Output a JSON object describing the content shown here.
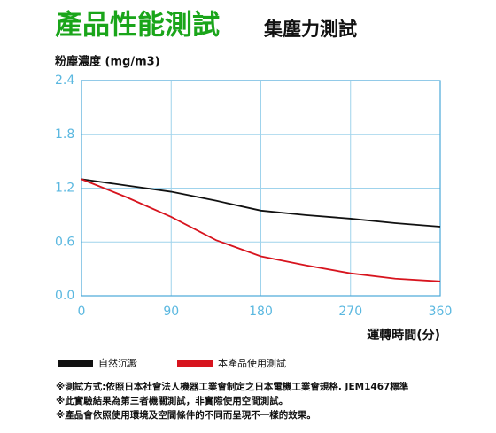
{
  "chart_data": {
    "type": "line",
    "title": "產品性能測試",
    "subtitle": "集塵力測試",
    "y_label": "粉塵濃度 (mg/m3)",
    "x_label": "運轉時間(分)",
    "x": [
      0,
      45,
      90,
      135,
      180,
      225,
      270,
      315,
      360
    ],
    "series": [
      {
        "name": "自然沉澱",
        "color": "#111111",
        "values": [
          1.3,
          1.23,
          1.16,
          1.06,
          0.95,
          0.9,
          0.86,
          0.81,
          0.77
        ]
      },
      {
        "name": "本產品使用測試",
        "color": "#d7141e",
        "values": [
          1.3,
          1.1,
          0.88,
          0.62,
          0.44,
          0.34,
          0.25,
          0.19,
          0.16
        ]
      }
    ],
    "xlim": [
      0,
      360
    ],
    "xticks": [
      0,
      90,
      180,
      270,
      360
    ],
    "ylim": [
      0,
      2.4
    ],
    "yticks": [
      {
        "value": 0,
        "label": "0.0"
      },
      0.6,
      1.2,
      1.8,
      2.4
    ],
    "grid": true,
    "notes": [
      "※測試方式:依照日本社會法人機器工業會制定之日本電機工業會規格. JEM1467標準",
      "※此實驗結果為第三者機關測試，非實際使用空間測試。",
      "※產品會依照使用環境及空間條件的不同而呈現不一樣的效果。"
    ]
  }
}
